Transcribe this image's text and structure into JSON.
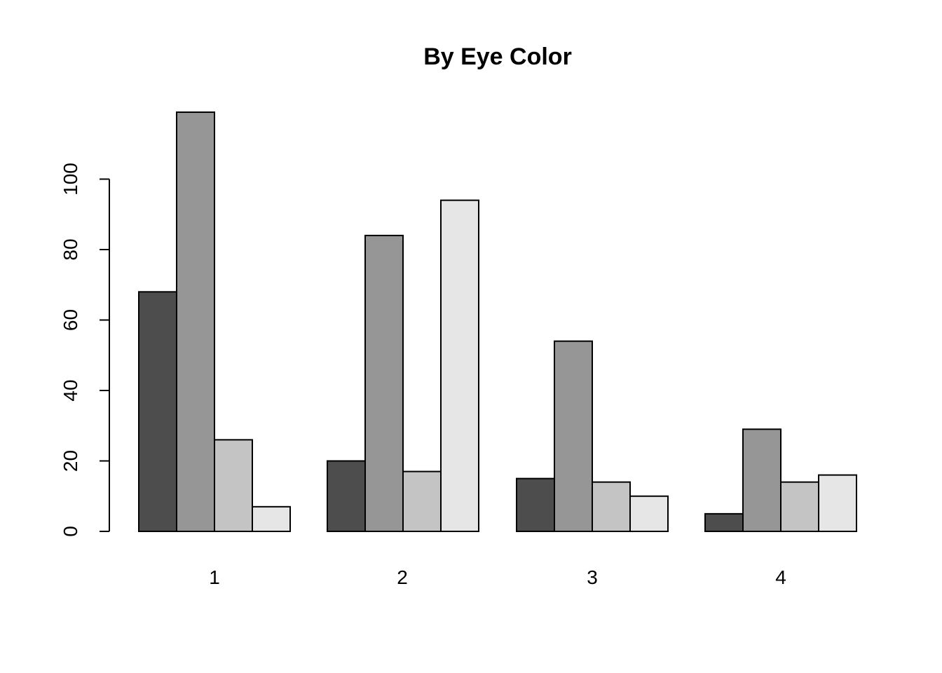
{
  "chart_data": {
    "type": "bar",
    "title": "By Eye Color",
    "xlabel": "",
    "ylabel": "",
    "categories": [
      "1",
      "2",
      "3",
      "4"
    ],
    "series": [
      {
        "values": [
          68,
          20,
          15,
          5
        ],
        "color": "#4d4d4d"
      },
      {
        "values": [
          119,
          84,
          54,
          29
        ],
        "color": "#969696"
      },
      {
        "values": [
          26,
          17,
          14,
          14
        ],
        "color": "#c4c4c4"
      },
      {
        "values": [
          7,
          94,
          10,
          16
        ],
        "color": "#e6e6e6"
      }
    ],
    "y_ticks": [
      "0",
      "20",
      "40",
      "60",
      "80",
      "100"
    ],
    "ylim": [
      0,
      119
    ],
    "grid": false,
    "legend": "none"
  }
}
